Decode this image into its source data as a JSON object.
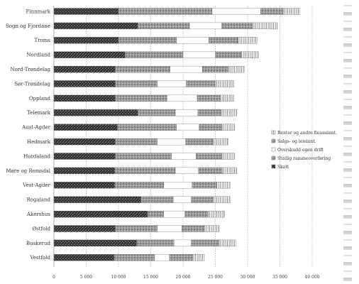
{
  "chart_data": {
    "type": "bar",
    "orientation": "horizontal",
    "stacked": true,
    "title": "",
    "xlabel": "",
    "ylabel": "",
    "xlim": [
      0,
      40000
    ],
    "xticks": [
      0,
      5000,
      10000,
      15000,
      20000,
      25000,
      30000,
      35000,
      40000
    ],
    "xtick_labels": [
      "0",
      "5 000",
      "10 000",
      "15 000",
      "20 000",
      "25 000",
      "30 000",
      "35 000",
      "40 000"
    ],
    "grid": true,
    "legend_position": "right",
    "categories": [
      "Finnmark",
      "Sogn og Fjordane",
      "Troms",
      "Nordland",
      "Nord-Trøndelag",
      "Sør-Trøndelag",
      "Oppland",
      "Telemark",
      "Aust-Agder",
      "Hedmark",
      "Hordaland",
      "Møre og Romsdal",
      "Vest-Agder",
      "Rogaland",
      "Akershus",
      "Østfold",
      "Buskerud",
      "Vestfold"
    ],
    "series": [
      {
        "name": "Skatt",
        "color": "#3a3a3a",
        "pattern": "dark-speckle",
        "values": [
          10000,
          13000,
          10000,
          11000,
          9500,
          9500,
          9500,
          13000,
          9800,
          9500,
          9500,
          9400,
          9400,
          13500,
          14500,
          9500,
          12800,
          9300
        ]
      },
      {
        "name": "Statlig rammeoverføring",
        "color": "#8c8c8c",
        "pattern": "grey-speckle",
        "values": [
          14500,
          8000,
          9000,
          9000,
          8500,
          6500,
          8000,
          5800,
          9200,
          6500,
          8700,
          9400,
          7600,
          5000,
          2500,
          6500,
          5800,
          6300
        ]
      },
      {
        "name": "Overskudd egen drift",
        "color": "#ffffff",
        "pattern": "white",
        "values": [
          7500,
          5000,
          5000,
          5000,
          5000,
          4500,
          4700,
          3500,
          3500,
          4400,
          3800,
          3600,
          4400,
          2800,
          3300,
          3800,
          2700,
          2300
        ]
      },
      {
        "name": "Salgs- og leieinnt.",
        "color": "#a0a0a0",
        "pattern": "grey-speckle",
        "values": [
          3500,
          4800,
          4500,
          4000,
          4000,
          4500,
          3600,
          3600,
          3500,
          4200,
          4000,
          3700,
          3800,
          3400,
          3600,
          3500,
          4300,
          3600
        ]
      },
      {
        "name": "Renter og andre finansinnt.",
        "color": "#ffffff",
        "pattern": "hatch",
        "values": [
          2600,
          3800,
          3000,
          2700,
          2500,
          2900,
          2100,
          2400,
          2000,
          2400,
          2000,
          2200,
          2100,
          2600,
          2500,
          2300,
          2600,
          1800
        ]
      }
    ]
  }
}
